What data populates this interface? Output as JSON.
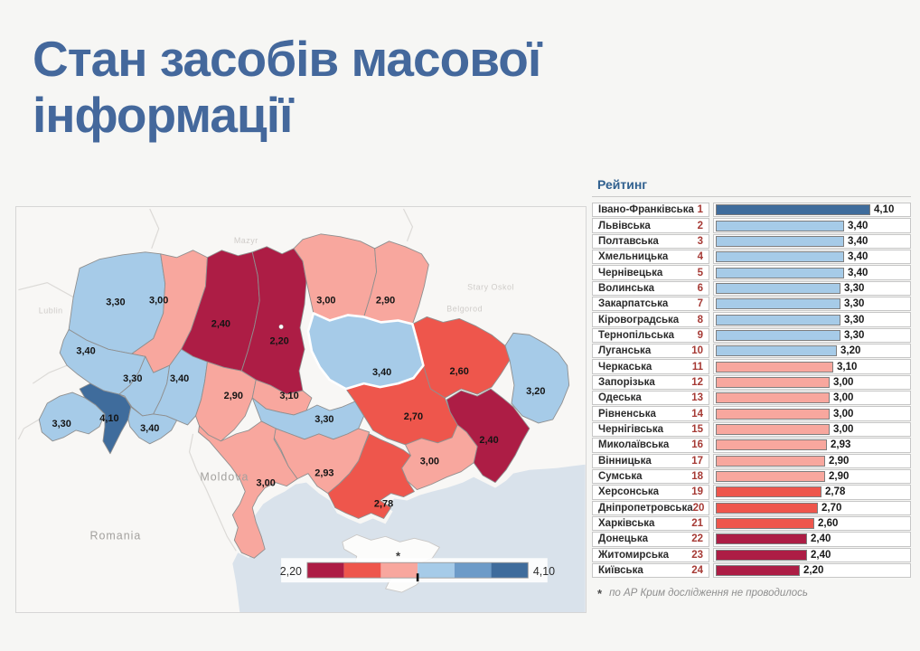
{
  "title": "Стан засобів масової інформації",
  "colors": {
    "title": "#44689c",
    "crimson": "#ad1d45",
    "red": "#ee564c",
    "salmon": "#f8a79e",
    "light_blue": "#a6cbe8",
    "medium_blue": "#6d9bc8",
    "dark_blue": "#3f6c9c",
    "no_data": "#fcfcfb",
    "sea": "#d9e2eb",
    "rank_number": "#a63a35",
    "header_blue": "#30608f"
  },
  "ranking": {
    "header": "Рейтинг",
    "footnote_marker": "*",
    "footnote": "по АР Крим дослідження не проводилось"
  },
  "chart_data": [
    {
      "type": "bar",
      "title": "Рейтинг",
      "orientation": "horizontal",
      "xlim": [
        0,
        4.4
      ],
      "axis_hidden": true,
      "categories": [
        "Івано-Франківська",
        "Львівська",
        "Полтавська",
        "Хмельницька",
        "Чернівецька",
        "Волинська",
        "Закарпатська",
        "Кіровоградська",
        "Тернопільська",
        "Луганська",
        "Черкаська",
        "Запорізька",
        "Одеська",
        "Рівненська",
        "Чернігівська",
        "Миколаївська",
        "Вінницька",
        "Сумська",
        "Херсонська",
        "Дніпропетровська",
        "Харківська",
        "Донецька",
        "Житомирська",
        "Київська"
      ],
      "ranks": [
        1,
        2,
        3,
        4,
        5,
        6,
        7,
        8,
        9,
        10,
        11,
        12,
        13,
        14,
        15,
        16,
        17,
        18,
        19,
        20,
        21,
        22,
        23,
        24
      ],
      "values": [
        4.1,
        3.4,
        3.4,
        3.4,
        3.4,
        3.3,
        3.3,
        3.3,
        3.3,
        3.2,
        3.1,
        3.0,
        3.0,
        3.0,
        3.0,
        2.93,
        2.9,
        2.9,
        2.78,
        2.7,
        2.6,
        2.4,
        2.4,
        2.2
      ],
      "value_labels": [
        "4,10",
        "3,40",
        "3,40",
        "3,40",
        "3,40",
        "3,30",
        "3,30",
        "3,30",
        "3,30",
        "3,20",
        "3,10",
        "3,00",
        "3,00",
        "3,00",
        "3,00",
        "2,93",
        "2,90",
        "2,90",
        "2,78",
        "2,70",
        "2,60",
        "2,40",
        "2,40",
        "2,20"
      ],
      "bins": [
        "dark_blue",
        "light_blue",
        "light_blue",
        "light_blue",
        "light_blue",
        "light_blue",
        "light_blue",
        "light_blue",
        "light_blue",
        "light_blue",
        "salmon",
        "salmon",
        "salmon",
        "salmon",
        "salmon",
        "salmon",
        "salmon",
        "salmon",
        "red",
        "red",
        "red",
        "crimson",
        "crimson",
        "crimson"
      ]
    },
    {
      "type": "heatmap",
      "subtype": "choropleth_map",
      "geo": "Ukraine oblasts",
      "value_range": [
        2.2,
        4.1
      ],
      "legend": {
        "min_label": "2,20",
        "max_label": "4,10",
        "bins": [
          "crimson",
          "red",
          "salmon",
          "light_blue",
          "medium_blue",
          "dark_blue"
        ],
        "midpoint_tick": true
      },
      "background_labels": {
        "moldova": "Moldova",
        "romania": "Romania",
        "lublin": "Lublin",
        "mazyr": "Mazyr",
        "stary_oskol": "Stary Oskol",
        "belgorod": "Belgorod"
      },
      "no_data_region": {
        "key": "crimea",
        "name": "АР Крим",
        "marker": "*"
      },
      "regions": [
        {
          "key": "volyn",
          "name": "Волинська",
          "value": 3.3,
          "value_label": "3,30",
          "bin": "light_blue"
        },
        {
          "key": "rivne",
          "name": "Рівненська",
          "value": 3.0,
          "value_label": "3,00",
          "bin": "salmon"
        },
        {
          "key": "zhytomyr",
          "name": "Житомирська",
          "value": 2.4,
          "value_label": "2,40",
          "bin": "crimson"
        },
        {
          "key": "kyiv",
          "name": "Київська",
          "value": 2.2,
          "value_label": "2,20",
          "bin": "crimson"
        },
        {
          "key": "chernihiv",
          "name": "Чернігівська",
          "value": 3.0,
          "value_label": "3,00",
          "bin": "salmon"
        },
        {
          "key": "sumy",
          "name": "Сумська",
          "value": 2.9,
          "value_label": "2,90",
          "bin": "salmon"
        },
        {
          "key": "lviv",
          "name": "Львівська",
          "value": 3.4,
          "value_label": "3,40",
          "bin": "light_blue"
        },
        {
          "key": "ternopil",
          "name": "Тернопільська",
          "value": 3.3,
          "value_label": "3,30",
          "bin": "light_blue"
        },
        {
          "key": "khmelnytskyi",
          "name": "Хмельницька",
          "value": 3.4,
          "value_label": "3,40",
          "bin": "light_blue"
        },
        {
          "key": "vinnytsia",
          "name": "Вінницька",
          "value": 2.9,
          "value_label": "2,90",
          "bin": "salmon"
        },
        {
          "key": "cherkasy",
          "name": "Черкаська",
          "value": 3.1,
          "value_label": "3,10",
          "bin": "salmon"
        },
        {
          "key": "kirovohrad",
          "name": "Кіровоградська",
          "value": 3.3,
          "value_label": "3,30",
          "bin": "light_blue"
        },
        {
          "key": "kharkiv",
          "name": "Харківська",
          "value": 2.6,
          "value_label": "2,60",
          "bin": "red"
        },
        {
          "key": "luhansk",
          "name": "Луганська",
          "value": 3.2,
          "value_label": "3,20",
          "bin": "light_blue"
        },
        {
          "key": "dnipro",
          "name": "Дніпропетровська",
          "value": 2.7,
          "value_label": "2,70",
          "bin": "red"
        },
        {
          "key": "donetsk",
          "name": "Донецька",
          "value": 2.4,
          "value_label": "2,40",
          "bin": "crimson"
        },
        {
          "key": "zaporizhzhia",
          "name": "Запорізька",
          "value": 3.0,
          "value_label": "3,00",
          "bin": "salmon"
        },
        {
          "key": "mykolaiv",
          "name": "Миколаївська",
          "value": 2.93,
          "value_label": "2,93",
          "bin": "salmon"
        },
        {
          "key": "odesa",
          "name": "Одеська",
          "value": 3.0,
          "value_label": "3,00",
          "bin": "salmon"
        },
        {
          "key": "kherson",
          "name": "Херсонська",
          "value": 2.78,
          "value_label": "2,78",
          "bin": "red"
        },
        {
          "key": "zakarpattia",
          "name": "Закарпатська",
          "value": 3.3,
          "value_label": "3,30",
          "bin": "light_blue"
        },
        {
          "key": "ivano_frankivsk",
          "name": "Івано-Франківська",
          "value": 4.1,
          "value_label": "4,10",
          "bin": "dark_blue"
        },
        {
          "key": "chernivtsi",
          "name": "Чернівецька",
          "value": 3.4,
          "value_label": "3,40",
          "bin": "light_blue"
        },
        {
          "key": "poltava",
          "name": "Полтавська",
          "value": 3.4,
          "value_label": "3,40",
          "bin": "light_blue",
          "highlighted": true
        },
        {
          "key": "crimea",
          "name": "АР Крим",
          "value": null,
          "value_label": "*",
          "bin": "no_data"
        }
      ]
    }
  ]
}
